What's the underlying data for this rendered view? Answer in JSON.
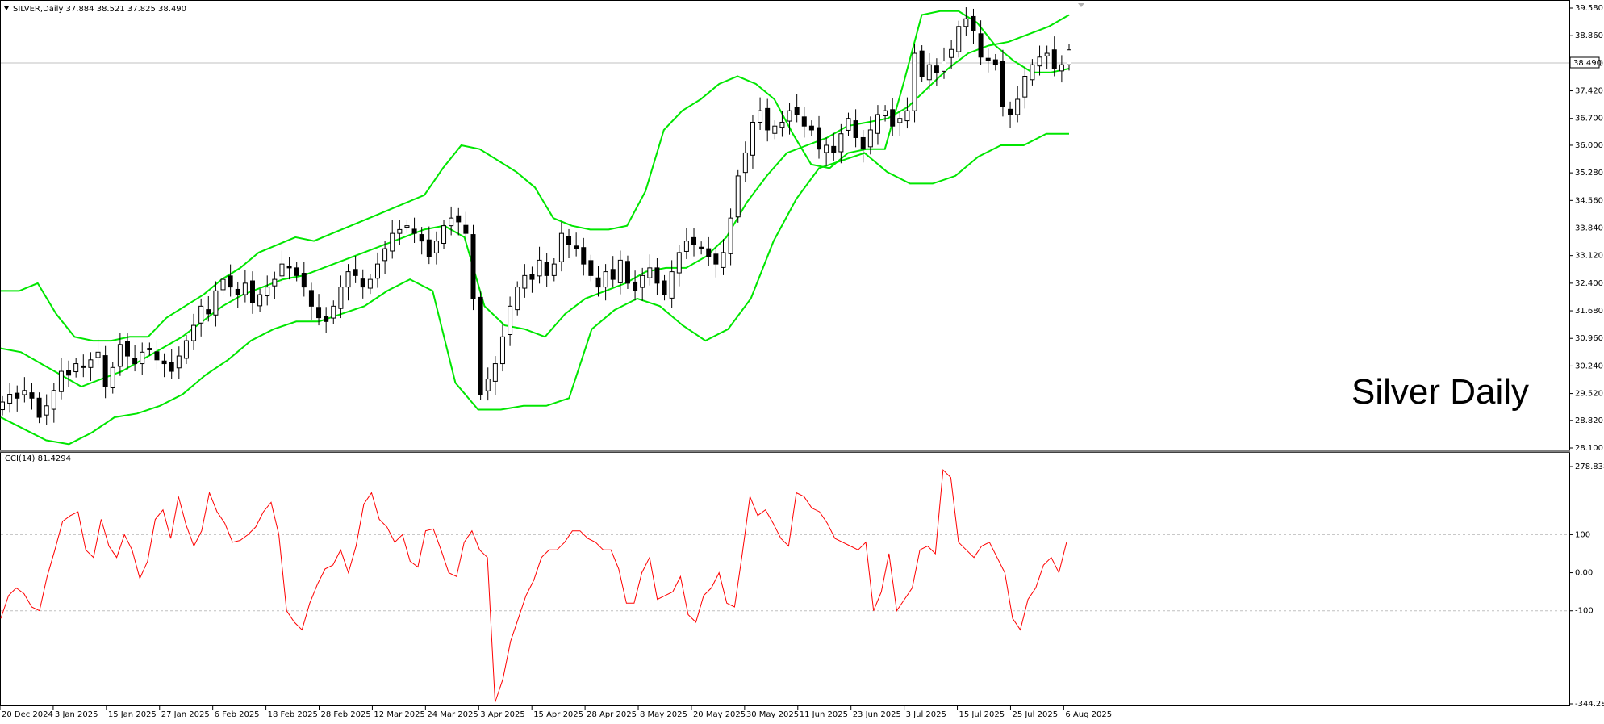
{
  "window": {
    "symbol_line": "SILVER,Daily  37.884 38.521 37.825 38.490",
    "watermark": "Silver Daily",
    "current_price_label": "38.490"
  },
  "colors": {
    "background": "#ffffff",
    "axis": "#000000",
    "bollinger": "#00e600",
    "cci": "#ff0000",
    "grid": "#c0c0c0",
    "candle_bull": "#ffffff",
    "candle_bear": "#000000"
  },
  "chart_data": [
    {
      "type": "candlestick",
      "title": "SILVER,Daily",
      "ohlc_header": "37.884 38.521 37.825 38.490",
      "overlay": "Bollinger Bands (upper, middle, lower)",
      "y_ticks": [
        "39.580",
        "38.860",
        "38.140",
        "37.420",
        "36.700",
        "36.000",
        "35.280",
        "34.560",
        "33.840",
        "33.120",
        "32.400",
        "31.680",
        "30.960",
        "30.240",
        "29.520",
        "28.820",
        "28.100"
      ],
      "ylim": [
        28.1,
        39.58
      ],
      "current_price": "38.490",
      "x_ticks": [
        "20 Dec 2024",
        "3 Jan 2025",
        "15 Jan 2025",
        "27 Jan 2025",
        "6 Feb 2025",
        "18 Feb 2025",
        "28 Feb 2025",
        "12 Mar 2025",
        "24 Mar 2025",
        "3 Apr 2025",
        "15 Apr 2025",
        "28 Apr 2025",
        "8 May 2025",
        "20 May 2025",
        "30 May 2025",
        "11 Jun 2025",
        "23 Jun 2025",
        "3 Jul 2025",
        "15 Jul 2025",
        "25 Jul 2025",
        "6 Aug 2025"
      ],
      "closes": [
        29.3,
        29.5,
        29.4,
        29.6,
        29.4,
        28.9,
        29.2,
        29.6,
        30.1,
        30.0,
        30.3,
        30.2,
        30.4,
        30.6,
        29.7,
        30.2,
        30.8,
        30.5,
        30.3,
        30.6,
        30.7,
        30.4,
        30.3,
        30.1,
        30.5,
        30.9,
        31.3,
        31.8,
        31.6,
        32.2,
        32.5,
        32.3,
        32.1,
        32.4,
        31.9,
        32.1,
        32.3,
        32.5,
        32.9,
        32.8,
        32.6,
        32.3,
        31.8,
        31.5,
        31.4,
        31.8,
        32.3,
        32.7,
        32.6,
        32.3,
        32.5,
        32.9,
        33.3,
        33.7,
        33.8,
        33.9,
        33.7,
        33.5,
        33.1,
        33.5,
        33.9,
        34.1,
        34.0,
        33.7,
        32.0,
        29.5,
        29.9,
        30.3,
        31.0,
        31.8,
        32.3,
        32.6,
        32.5,
        33.0,
        32.6,
        32.9,
        33.7,
        33.4,
        33.3,
        32.9,
        32.6,
        32.3,
        32.7,
        32.5,
        33.0,
        32.4,
        32.2,
        32.6,
        32.8,
        32.4,
        32.1,
        32.7,
        33.2,
        33.5,
        33.4,
        33.3,
        33.1,
        32.9,
        33.2,
        34.1,
        35.2,
        35.8,
        36.6,
        36.9,
        36.4,
        36.5,
        36.6,
        36.9,
        36.8,
        36.5,
        36.4,
        35.9,
        36.0,
        35.8,
        36.3,
        36.7,
        36.2,
        35.9,
        36.4,
        36.8,
        36.9,
        36.5,
        36.7,
        36.9,
        38.4,
        37.8,
        38.1,
        37.9,
        38.2,
        38.5,
        39.1,
        39.3,
        39.0,
        38.3,
        38.2,
        38.1,
        37.0,
        36.8,
        37.2,
        37.8,
        38.1,
        38.3,
        38.4,
        38.0,
        38.1,
        38.49
      ],
      "upper_band": [
        32.2,
        32.2,
        32.4,
        31.6,
        31.0,
        30.9,
        30.9,
        31.0,
        31.0,
        31.5,
        31.8,
        32.1,
        32.5,
        32.8,
        33.2,
        33.4,
        33.6,
        33.5,
        33.7,
        33.9,
        34.1,
        34.3,
        34.5,
        34.7,
        35.4,
        36.0,
        35.9,
        35.6,
        35.3,
        34.9,
        34.1,
        33.9,
        33.8,
        33.8,
        33.9,
        34.8,
        36.4,
        36.9,
        37.2,
        37.6,
        37.8,
        37.6,
        37.2,
        36.3,
        35.5,
        35.4,
        35.8,
        35.9,
        35.9,
        37.6,
        39.4,
        39.5,
        39.5,
        39.2,
        38.6,
        38.2,
        37.9,
        37.9,
        38.0
      ],
      "middle_band": [
        30.7,
        30.6,
        30.3,
        30.0,
        29.7,
        29.9,
        30.1,
        30.4,
        30.7,
        31.0,
        31.4,
        31.8,
        32.1,
        32.3,
        32.5,
        32.6,
        32.8,
        33.0,
        33.2,
        33.4,
        33.6,
        33.8,
        33.9,
        33.6,
        31.8,
        31.3,
        31.2,
        31.0,
        31.6,
        32.0,
        32.2,
        32.4,
        32.7,
        32.8,
        32.8,
        33.1,
        33.6,
        34.5,
        35.2,
        35.8,
        36.0,
        36.2,
        36.5,
        36.6,
        36.7,
        37.0,
        37.5,
        38.0,
        38.4,
        38.6,
        38.7,
        38.9,
        39.1,
        39.4
      ],
      "lower_band": [
        28.9,
        28.6,
        28.3,
        28.2,
        28.5,
        28.9,
        29.0,
        29.2,
        29.5,
        30.0,
        30.4,
        30.9,
        31.2,
        31.4,
        31.4,
        31.6,
        31.8,
        32.2,
        32.5,
        32.2,
        29.8,
        29.1,
        29.1,
        29.2,
        29.2,
        29.4,
        31.2,
        31.7,
        32.0,
        31.8,
        31.3,
        30.9,
        31.2,
        32.0,
        33.5,
        34.6,
        35.4,
        35.6,
        35.8,
        35.3,
        35.0,
        35.0,
        35.2,
        35.7,
        36.0,
        36.0,
        36.3,
        36.3
      ]
    },
    {
      "type": "line",
      "title": "CCI(14) 81.4294",
      "series": [
        {
          "name": "CCI(14)",
          "values": [
            -120,
            -60,
            -40,
            -55,
            -90,
            -100,
            -10,
            60,
            135,
            150,
            160,
            60,
            40,
            140,
            70,
            40,
            100,
            60,
            -15,
            30,
            140,
            165,
            90,
            200,
            125,
            70,
            110,
            210,
            160,
            130,
            80,
            85,
            100,
            120,
            160,
            185,
            100,
            -100,
            -130,
            -150,
            -80,
            -30,
            10,
            20,
            60,
            0,
            70,
            180,
            210,
            140,
            120,
            80,
            100,
            30,
            15,
            110,
            115,
            60,
            0,
            -10,
            80,
            110,
            60,
            40,
            -340,
            -280,
            -180,
            -120,
            -60,
            -20,
            40,
            60,
            60,
            80,
            110,
            110,
            90,
            80,
            60,
            60,
            10,
            -80,
            -80,
            0,
            40,
            -70,
            -60,
            -50,
            -10,
            -110,
            -130,
            -60,
            -40,
            0,
            -80,
            -90,
            50,
            200,
            150,
            165,
            130,
            90,
            70,
            210,
            200,
            170,
            160,
            130,
            90,
            80,
            70,
            60,
            80,
            -100,
            -50,
            50,
            -100,
            -70,
            -40,
            60,
            70,
            50,
            270,
            250,
            80,
            60,
            40,
            70,
            80,
            40,
            0,
            -120,
            -150,
            -70,
            -40,
            20,
            40,
            0,
            81
          ]
        }
      ],
      "y_ticks": [
        "278.8385",
        "100",
        "0.00",
        "-100",
        "-344.283"
      ],
      "ylim": [
        -344.283,
        278.8385
      ],
      "levels": [
        100,
        0,
        -100
      ]
    }
  ]
}
